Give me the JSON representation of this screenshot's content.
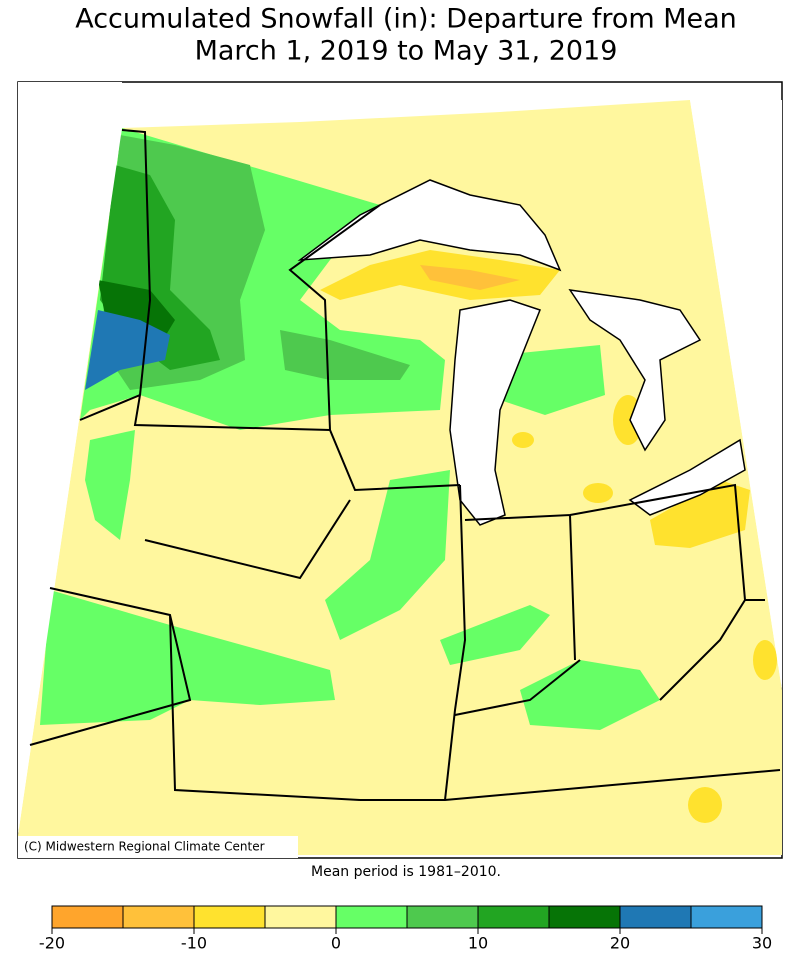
{
  "title": [
    "Accumulated Snowfall (in): Departure from Mean",
    "March 1, 2019 to May 31, 2019"
  ],
  "credit": "(C) Midwestern Regional Climate Center",
  "note": "Mean period is 1981–2010.",
  "legend": {
    "bins": [
      -20,
      -15,
      -10,
      -5,
      0,
      5,
      10,
      15,
      20,
      25,
      30
    ],
    "colors": [
      "#ffa52c",
      "#ffc13a",
      "#ffe22e",
      "#fff79e",
      "#66ff66",
      "#4ec94e",
      "#22a522",
      "#067406",
      "#1f78b4",
      "#3aa0dc"
    ],
    "ticks": [
      -20,
      -10,
      0,
      10,
      20,
      30
    ]
  }
}
